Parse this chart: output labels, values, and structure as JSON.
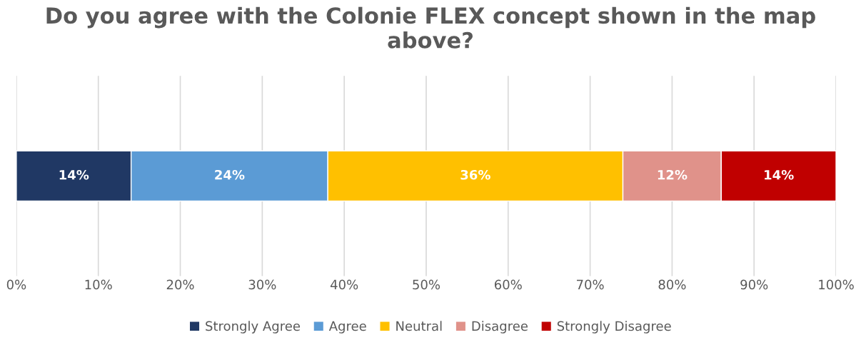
{
  "chart_data": {
    "type": "bar",
    "title": "Do you agree with the Colonie FLEX concept shown in the map above?",
    "orientation": "horizontal",
    "stacked": true,
    "categories": [
      null
    ],
    "series": [
      {
        "name": "Strongly Agree",
        "color": "#203864",
        "values": [
          14
        ],
        "value_labels": [
          "14%"
        ]
      },
      {
        "name": "Agree",
        "color": "#5b9bd5",
        "values": [
          24
        ],
        "value_labels": [
          "24%"
        ]
      },
      {
        "name": "Neutral",
        "color": "#ffc000",
        "values": [
          36
        ],
        "value_labels": [
          "36%"
        ]
      },
      {
        "name": "Disagree",
        "color": "#e0928a",
        "values": [
          12
        ],
        "value_labels": [
          "12%"
        ]
      },
      {
        "name": "Strongly Disagree",
        "color": "#c00000",
        "values": [
          14
        ],
        "value_labels": [
          "14%"
        ]
      }
    ],
    "xlim": [
      0,
      100
    ],
    "xticks": [
      {
        "value": 0,
        "label": "0%"
      },
      {
        "value": 10,
        "label": "10%"
      },
      {
        "value": 20,
        "label": "20%"
      },
      {
        "value": 30,
        "label": "30%"
      },
      {
        "value": 40,
        "label": "40%"
      },
      {
        "value": 50,
        "label": "50%"
      },
      {
        "value": 60,
        "label": "60%"
      },
      {
        "value": 70,
        "label": "70%"
      },
      {
        "value": 80,
        "label": "80%"
      },
      {
        "value": 90,
        "label": "90%"
      },
      {
        "value": 100,
        "label": "100%"
      }
    ],
    "grid": "x",
    "legend": "bottom",
    "tick_labels": "x"
  }
}
